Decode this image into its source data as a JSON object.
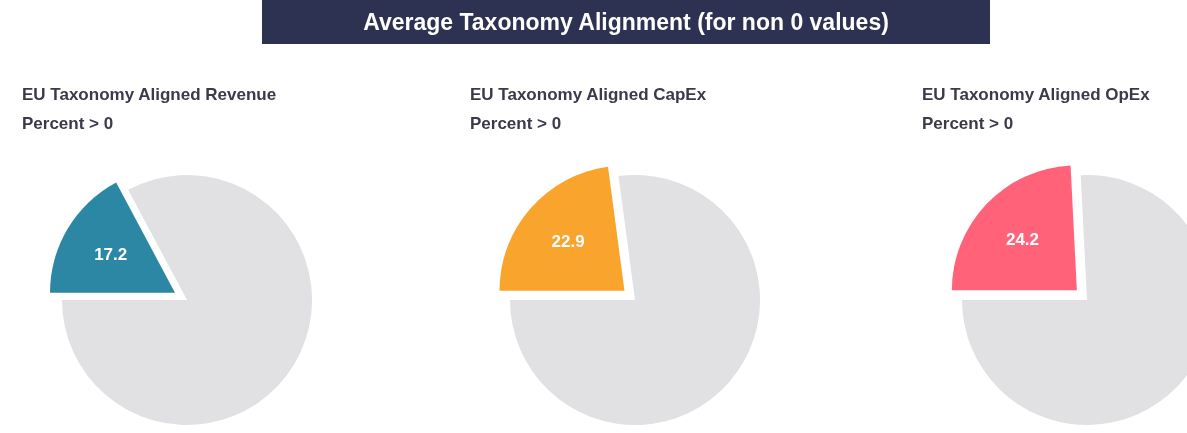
{
  "chart_data": [
    {
      "type": "other",
      "title": "Average Taxonomy Alignment (for non 0 values)"
    },
    {
      "type": "pie",
      "title": "EU Taxonomy Aligned Revenue",
      "subtitle": "Percent > 0",
      "categories": [
        null,
        null
      ],
      "values": [
        17.2,
        82.8
      ],
      "colors": [
        "#2b87a3",
        "#e1e1e4"
      ],
      "value_labels": [
        "17.2",
        null
      ]
    },
    {
      "type": "pie",
      "title": "EU Taxonomy Aligned CapEx",
      "subtitle": "Percent > 0",
      "categories": [
        null,
        null
      ],
      "values": [
        22.9,
        77.1
      ],
      "colors": [
        "#f9a42c",
        "#e1e1e4"
      ],
      "value_labels": [
        "22.9",
        null
      ]
    },
    {
      "type": "pie",
      "title": "EU Taxonomy Aligned OpEx",
      "subtitle": "Percent > 0",
      "categories": [
        null,
        null
      ],
      "values": [
        24.2,
        75.8
      ],
      "colors": [
        "#ff6279",
        "#e1e1e4"
      ],
      "value_labels": [
        "24.2",
        null
      ]
    }
  ]
}
